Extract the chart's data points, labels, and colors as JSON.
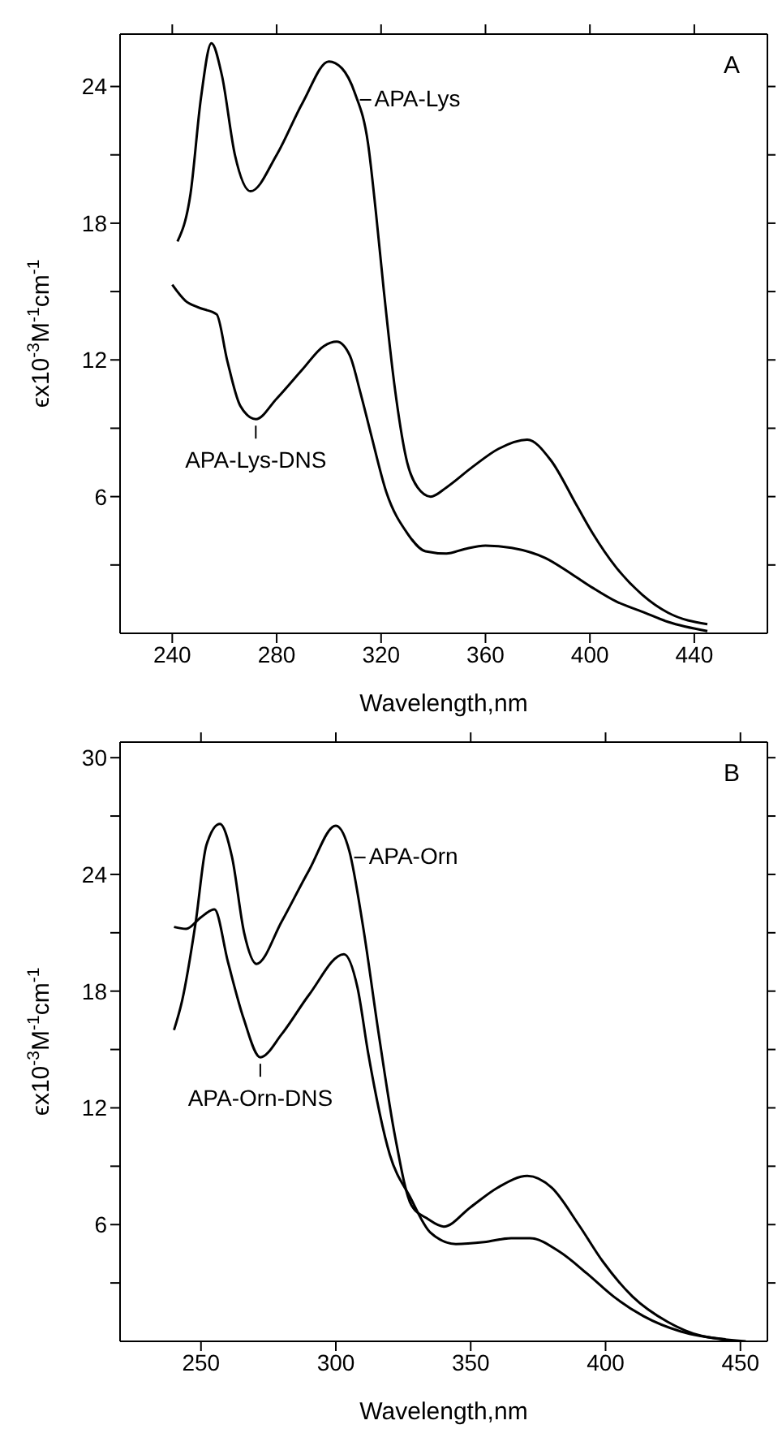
{
  "chart_data": [
    {
      "type": "line",
      "xlabel": "Wavelength,nm",
      "ylabel": "ϵx10$^{-3}$M$^{-1}$cm$^{-1}$",
      "annotations": [
        "A"
      ],
      "xlim": [
        220,
        468
      ],
      "xticks": [
        240,
        280,
        320,
        360,
        400,
        440
      ],
      "ylim": [
        0,
        26.3
      ],
      "yticks": [
        {
          "value": 3,
          "label": null
        },
        6,
        {
          "value": 9,
          "label": null
        },
        12,
        {
          "value": 15,
          "label": null
        },
        18,
        {
          "value": 21,
          "label": null
        },
        24
      ],
      "marker": "none",
      "line_style": "solid",
      "series": [
        {
          "name": "APA-Lys",
          "color": "#000000",
          "x": [
            242,
            247,
            251,
            255,
            259,
            264,
            270,
            280,
            290,
            300,
            305,
            310,
            315,
            318,
            321,
            325,
            330,
            334,
            339,
            345,
            355,
            365,
            376,
            385,
            395,
            401,
            410,
            420,
            430,
            445
          ],
          "values": [
            17.2,
            19.3,
            23.5,
            25.9,
            24.5,
            21.0,
            19.4,
            21.0,
            23.3,
            25.1,
            24.8,
            23.7,
            21.5,
            18.5,
            15.1,
            11.0,
            7.5,
            6.4,
            6.0,
            6.4,
            7.3,
            8.1,
            8.5,
            7.6,
            5.6,
            4.4,
            2.9,
            1.7,
            0.9,
            0.4
          ]
        },
        {
          "name": "APA-Lys-DNS",
          "color": "#000000",
          "x": [
            240,
            245,
            250,
            257,
            261,
            266,
            272,
            280,
            290,
            298,
            303,
            308,
            312,
            316,
            322,
            330,
            337,
            345,
            352,
            360,
            370,
            383,
            393,
            401,
            410,
            420,
            430,
            445
          ],
          "values": [
            15.3,
            14.6,
            14.3,
            14.0,
            12.0,
            10.0,
            9.4,
            10.3,
            11.6,
            12.6,
            12.8,
            12.2,
            10.6,
            8.8,
            6.2,
            4.4,
            3.6,
            3.5,
            3.7,
            3.85,
            3.75,
            3.3,
            2.6,
            2.0,
            1.4,
            0.95,
            0.5,
            0.1
          ]
        }
      ]
    },
    {
      "type": "line",
      "xlabel": "Wavelength,nm",
      "ylabel": "ϵx10$^{-3}$M$^{-1}$cm$^{-1}$",
      "annotations": [
        "B"
      ],
      "xlim": [
        220,
        460
      ],
      "xticks": [
        250,
        300,
        350,
        400,
        450
      ],
      "ylim": [
        0,
        30.8
      ],
      "yticks": [
        {
          "value": 3,
          "label": null
        },
        6,
        {
          "value": 9,
          "label": null
        },
        12,
        {
          "value": 15,
          "label": null
        },
        18,
        {
          "value": 21,
          "label": null
        },
        24,
        {
          "value": 27,
          "label": null
        },
        30
      ],
      "marker": "none",
      "line_style": "solid",
      "series": [
        {
          "name": "APA-Orn",
          "color": "#000000",
          "x": [
            240,
            243,
            248,
            252,
            257,
            261.5,
            266,
            270.6,
            280,
            290,
            300,
            305,
            310,
            316,
            322,
            328,
            334,
            340,
            350,
            360,
            371,
            380,
            390,
            399,
            410,
            423,
            435,
            452
          ],
          "values": [
            16.0,
            17.5,
            21.5,
            25.5,
            26.6,
            24.9,
            21.0,
            19.4,
            21.6,
            24.2,
            26.5,
            25.2,
            21.4,
            15.7,
            10.5,
            7.0,
            6.3,
            5.9,
            6.9,
            7.9,
            8.5,
            7.9,
            6.0,
            4.1,
            2.3,
            1.0,
            0.3,
            0
          ]
        },
        {
          "name": "APA-Orn-DNS",
          "color": "#000000",
          "x": [
            240,
            244.5,
            250,
            255,
            260,
            265.8,
            272,
            280,
            290,
            303,
            308,
            312,
            320,
            327.6,
            335,
            344.5,
            355,
            365,
            372,
            383,
            393,
            403,
            414,
            428,
            444.5
          ],
          "values": [
            21.3,
            21.2,
            21.8,
            22.2,
            19.5,
            16.6,
            14.6,
            15.8,
            17.8,
            19.9,
            18.2,
            14.8,
            9.6,
            7.4,
            5.6,
            5.0,
            5.1,
            5.3,
            5.3,
            4.6,
            3.5,
            2.3,
            1.3,
            0.5,
            0.1
          ]
        }
      ]
    }
  ]
}
